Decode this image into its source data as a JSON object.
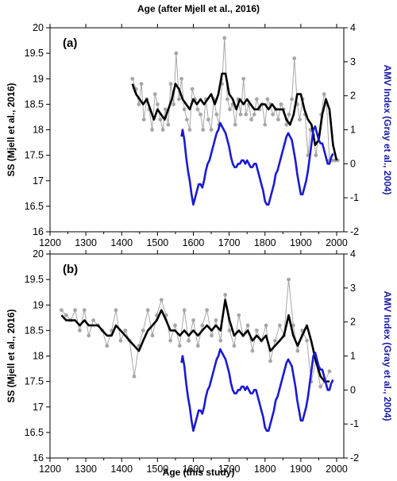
{
  "top_axis_title": "Age (after Mjell et al., 2016)",
  "bottom_axis_title": "Age (this study)",
  "colors": {
    "raw": "#a6a6a6",
    "smooth": "#000000",
    "amv": "#1a1ad0",
    "axis_right": "#1a1aa6"
  },
  "chart_data": [
    {
      "type": "line",
      "panel_label": "(a)",
      "xlim": [
        1200,
        2020
      ],
      "ylim": [
        16,
        20
      ],
      "y2lim": [
        -2,
        4
      ],
      "xticks": [
        1200,
        1300,
        1400,
        1500,
        1600,
        1700,
        1800,
        1900,
        2000
      ],
      "yticks": [
        16,
        16.5,
        17,
        17.5,
        18,
        18.5,
        19,
        19.5,
        20
      ],
      "y2ticks": [
        -2,
        -1,
        0,
        1,
        2,
        3,
        4
      ],
      "ylabel": "SS (Mjell et al., 2016)",
      "y2label": "AMV Index  (Gray et al., 2004)",
      "series": [
        {
          "axis": "left",
          "style": "raw-points",
          "x": [
            1430,
            1440,
            1448,
            1455,
            1462,
            1470,
            1477,
            1485,
            1493,
            1500,
            1508,
            1515,
            1522,
            1530,
            1537,
            1545,
            1552,
            1560,
            1567,
            1575,
            1582,
            1590,
            1597,
            1605,
            1612,
            1620,
            1627,
            1635,
            1642,
            1650,
            1657,
            1665,
            1672,
            1680,
            1687,
            1695,
            1702,
            1710,
            1717,
            1725,
            1732,
            1740,
            1747,
            1755,
            1762,
            1770,
            1777,
            1785,
            1792,
            1800,
            1807,
            1815,
            1822,
            1830,
            1837,
            1845,
            1852,
            1860,
            1867,
            1875,
            1882,
            1890,
            1897,
            1905,
            1912,
            1920,
            1927,
            1935,
            1942,
            1950,
            1957,
            1965,
            1972,
            1980,
            1987,
            1995,
            2003
          ],
          "y": [
            19.0,
            18.8,
            18.5,
            18.9,
            18.2,
            18.6,
            18.4,
            18.0,
            18.7,
            18.5,
            18.2,
            18.0,
            18.4,
            18.1,
            18.9,
            18.5,
            19.5,
            18.6,
            19.0,
            18.4,
            18.2,
            18.0,
            18.8,
            18.6,
            18.4,
            18.3,
            18.0,
            18.6,
            18.2,
            18.0,
            18.6,
            18.3,
            18.1,
            18.9,
            19.8,
            18.6,
            18.4,
            18.5,
            18.1,
            18.6,
            18.3,
            19.0,
            18.3,
            18.5,
            18.2,
            18.3,
            18.6,
            18.4,
            18.5,
            18.1,
            18.6,
            18.5,
            18.3,
            18.4,
            18.2,
            18.5,
            18.4,
            18.1,
            18.3,
            18.6,
            19.4,
            18.5,
            18.2,
            18.6,
            18.3,
            17.5,
            18.0,
            17.9,
            17.5,
            17.9,
            18.3,
            18.7,
            18.5,
            17.4,
            17.4,
            17.4,
            17.4
          ]
        },
        {
          "axis": "left",
          "style": "smooth",
          "x": [
            1430,
            1440,
            1450,
            1460,
            1470,
            1480,
            1490,
            1500,
            1510,
            1520,
            1530,
            1540,
            1550,
            1560,
            1570,
            1580,
            1590,
            1600,
            1610,
            1620,
            1630,
            1640,
            1650,
            1660,
            1670,
            1680,
            1690,
            1700,
            1710,
            1720,
            1730,
            1740,
            1750,
            1760,
            1770,
            1780,
            1790,
            1800,
            1810,
            1820,
            1830,
            1840,
            1850,
            1860,
            1870,
            1880,
            1890,
            1900,
            1910,
            1920,
            1930,
            1940,
            1950,
            1960,
            1970,
            1980,
            1990,
            2000
          ],
          "y": [
            18.9,
            18.7,
            18.6,
            18.5,
            18.6,
            18.4,
            18.2,
            18.4,
            18.3,
            18.2,
            18.4,
            18.6,
            18.9,
            18.8,
            18.6,
            18.5,
            18.4,
            18.6,
            18.5,
            18.6,
            18.5,
            18.6,
            18.7,
            18.5,
            18.7,
            19.1,
            19.1,
            18.7,
            18.6,
            18.4,
            18.6,
            18.5,
            18.6,
            18.5,
            18.4,
            18.4,
            18.5,
            18.5,
            18.4,
            18.5,
            18.4,
            18.4,
            18.4,
            18.2,
            18.1,
            18.3,
            18.7,
            18.7,
            18.4,
            18.2,
            18.1,
            17.7,
            17.8,
            18.3,
            18.6,
            18.4,
            17.7,
            17.4
          ]
        },
        {
          "axis": "right",
          "style": "amv",
          "x": [
            1567,
            1570,
            1575,
            1580,
            1585,
            1590,
            1595,
            1600,
            1605,
            1610,
            1615,
            1620,
            1625,
            1630,
            1635,
            1640,
            1645,
            1650,
            1655,
            1660,
            1665,
            1670,
            1675,
            1680,
            1685,
            1690,
            1695,
            1700,
            1705,
            1710,
            1715,
            1720,
            1725,
            1730,
            1735,
            1740,
            1745,
            1750,
            1755,
            1760,
            1765,
            1770,
            1775,
            1780,
            1785,
            1790,
            1795,
            1800,
            1805,
            1810,
            1815,
            1820,
            1825,
            1830,
            1835,
            1840,
            1845,
            1850,
            1855,
            1860,
            1865,
            1870,
            1875,
            1880,
            1885,
            1890,
            1895,
            1900,
            1905,
            1910,
            1915,
            1920,
            1925,
            1930,
            1935,
            1940,
            1945,
            1950,
            1955,
            1960,
            1965,
            1970,
            1975,
            1980,
            1985,
            1990
          ],
          "y": [
            0.8,
            1.0,
            0.7,
            0.2,
            -0.2,
            -0.5,
            -0.9,
            -1.2,
            -1.0,
            -0.8,
            -0.6,
            -0.6,
            -0.7,
            -0.5,
            -0.2,
            0.0,
            0.1,
            0.3,
            0.5,
            0.7,
            0.9,
            1.0,
            1.2,
            1.1,
            1.0,
            0.9,
            0.7,
            0.5,
            0.2,
            0.0,
            -0.1,
            -0.1,
            0.0,
            0.0,
            0.1,
            0.1,
            0.0,
            0.1,
            0.0,
            -0.1,
            -0.1,
            0.0,
            0.0,
            -0.2,
            -0.4,
            -0.6,
            -0.8,
            -1.1,
            -1.2,
            -1.2,
            -1.0,
            -0.8,
            -0.6,
            -0.3,
            -0.2,
            0.0,
            0.2,
            0.4,
            0.6,
            0.8,
            0.9,
            0.8,
            0.7,
            0.4,
            0.1,
            -0.3,
            -0.6,
            -0.9,
            -0.9,
            -0.7,
            -0.5,
            -0.2,
            0.2,
            0.6,
            1.0,
            1.1,
            0.9,
            0.7,
            0.6,
            0.6,
            0.4,
            0.2,
            0.0,
            0.0,
            0.2,
            0.3
          ]
        }
      ]
    },
    {
      "type": "line",
      "panel_label": "(b)",
      "xlim": [
        1200,
        2020
      ],
      "ylim": [
        16,
        20
      ],
      "y2lim": [
        -2,
        4
      ],
      "xticks": [
        1200,
        1300,
        1400,
        1500,
        1600,
        1700,
        1800,
        1900,
        2000
      ],
      "yticks": [
        16,
        16.5,
        17,
        17.5,
        18,
        18.5,
        19,
        19.5,
        20
      ],
      "y2ticks": [
        -2,
        -1,
        0,
        1,
        2,
        3,
        4
      ],
      "ylabel": "SS (Mjell et al., 2016)",
      "y2label": "AMV Index  (Gray et al., 2004)",
      "series": [
        {
          "axis": "left",
          "style": "raw-points",
          "x": [
            1232,
            1245,
            1258,
            1270,
            1283,
            1296,
            1308,
            1321,
            1334,
            1346,
            1359,
            1372,
            1384,
            1397,
            1410,
            1422,
            1435,
            1448,
            1460,
            1473,
            1486,
            1498,
            1511,
            1524,
            1536,
            1549,
            1562,
            1575,
            1587,
            1600,
            1613,
            1625,
            1638,
            1651,
            1663,
            1676,
            1689,
            1701,
            1714,
            1727,
            1739,
            1752,
            1765,
            1777,
            1790,
            1803,
            1815,
            1828,
            1841,
            1853,
            1866,
            1879,
            1891,
            1904,
            1917,
            1929,
            1942,
            1955,
            1967,
            1980
          ],
          "y": [
            18.9,
            18.8,
            18.7,
            18.9,
            18.5,
            18.9,
            18.4,
            18.7,
            18.6,
            18.5,
            18.2,
            18.5,
            18.9,
            18.3,
            18.5,
            18.3,
            17.6,
            18.2,
            18.5,
            18.9,
            18.4,
            18.8,
            19.1,
            18.8,
            18.3,
            18.6,
            18.2,
            18.9,
            18.3,
            18.7,
            18.2,
            18.6,
            18.9,
            18.4,
            18.7,
            18.3,
            19.2,
            18.5,
            18.2,
            18.8,
            18.4,
            18.6,
            18.1,
            18.5,
            18.3,
            18.6,
            17.9,
            18.3,
            18.6,
            18.4,
            19.5,
            18.6,
            18.1,
            18.5,
            18.3,
            17.5,
            17.9,
            17.4,
            17.5,
            17.7
          ]
        },
        {
          "axis": "left",
          "style": "smooth",
          "x": [
            1232,
            1245,
            1258,
            1270,
            1283,
            1296,
            1308,
            1321,
            1334,
            1346,
            1359,
            1372,
            1384,
            1397,
            1410,
            1422,
            1435,
            1448,
            1460,
            1473,
            1486,
            1498,
            1511,
            1524,
            1536,
            1549,
            1562,
            1575,
            1587,
            1600,
            1613,
            1625,
            1638,
            1651,
            1663,
            1676,
            1689,
            1701,
            1714,
            1727,
            1739,
            1752,
            1765,
            1777,
            1790,
            1803,
            1815,
            1828,
            1841,
            1853,
            1866,
            1879,
            1891,
            1904,
            1917,
            1929,
            1942,
            1955,
            1967,
            1980
          ],
          "y": [
            18.8,
            18.7,
            18.7,
            18.7,
            18.6,
            18.7,
            18.6,
            18.6,
            18.6,
            18.5,
            18.4,
            18.4,
            18.6,
            18.5,
            18.4,
            18.3,
            18.2,
            18.1,
            18.3,
            18.5,
            18.6,
            18.7,
            18.9,
            18.7,
            18.5,
            18.5,
            18.4,
            18.5,
            18.4,
            18.5,
            18.4,
            18.5,
            18.6,
            18.5,
            18.6,
            18.5,
            19.1,
            18.7,
            18.4,
            18.5,
            18.4,
            18.5,
            18.3,
            18.4,
            18.3,
            18.4,
            18.1,
            18.2,
            18.3,
            18.4,
            18.8,
            18.4,
            18.2,
            18.4,
            18.6,
            18.3,
            17.9,
            17.6,
            17.5,
            17.5
          ]
        },
        {
          "axis": "right",
          "style": "amv",
          "x": [
            1567,
            1570,
            1575,
            1580,
            1585,
            1590,
            1595,
            1600,
            1605,
            1610,
            1615,
            1620,
            1625,
            1630,
            1635,
            1640,
            1645,
            1650,
            1655,
            1660,
            1665,
            1670,
            1675,
            1680,
            1685,
            1690,
            1695,
            1700,
            1705,
            1710,
            1715,
            1720,
            1725,
            1730,
            1735,
            1740,
            1745,
            1750,
            1755,
            1760,
            1765,
            1770,
            1775,
            1780,
            1785,
            1790,
            1795,
            1800,
            1805,
            1810,
            1815,
            1820,
            1825,
            1830,
            1835,
            1840,
            1845,
            1850,
            1855,
            1860,
            1865,
            1870,
            1875,
            1880,
            1885,
            1890,
            1895,
            1900,
            1905,
            1910,
            1915,
            1920,
            1925,
            1930,
            1935,
            1940,
            1945,
            1950,
            1955,
            1960,
            1965,
            1970,
            1975,
            1980,
            1985,
            1990
          ],
          "y": [
            0.8,
            1.0,
            0.7,
            0.2,
            -0.2,
            -0.5,
            -0.9,
            -1.2,
            -1.0,
            -0.8,
            -0.6,
            -0.6,
            -0.7,
            -0.5,
            -0.2,
            0.0,
            0.1,
            0.3,
            0.5,
            0.7,
            0.9,
            1.0,
            1.2,
            1.1,
            1.0,
            0.9,
            0.7,
            0.5,
            0.2,
            0.0,
            -0.1,
            -0.1,
            0.0,
            0.0,
            0.1,
            0.1,
            0.0,
            0.1,
            0.0,
            -0.1,
            -0.1,
            0.0,
            0.0,
            -0.2,
            -0.4,
            -0.6,
            -0.8,
            -1.1,
            -1.2,
            -1.2,
            -1.0,
            -0.8,
            -0.6,
            -0.3,
            -0.2,
            0.0,
            0.2,
            0.4,
            0.6,
            0.8,
            0.9,
            0.8,
            0.7,
            0.4,
            0.1,
            -0.3,
            -0.6,
            -0.9,
            -0.9,
            -0.7,
            -0.5,
            -0.2,
            0.2,
            0.6,
            1.0,
            1.1,
            0.9,
            0.7,
            0.6,
            0.6,
            0.4,
            0.2,
            0.0,
            0.0,
            0.2,
            0.3
          ]
        }
      ]
    }
  ]
}
